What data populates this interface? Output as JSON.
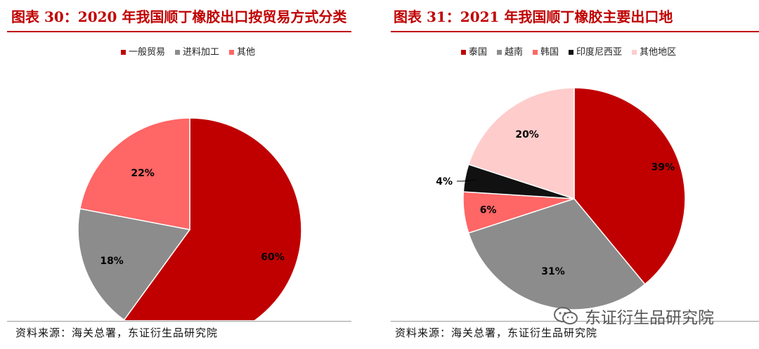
{
  "chart_data": [
    {
      "type": "pie",
      "title": "图表 30：2020 年我国顺丁橡胶出口按贸易方式分类",
      "categories": [
        "一般贸易",
        "进料加工",
        "其他"
      ],
      "values": [
        60,
        18,
        22
      ],
      "value_labels": [
        "60%",
        "18%",
        "22%"
      ],
      "colors": [
        "#c00000",
        "#8c8c8c",
        "#ff6666"
      ],
      "legend_position": "top",
      "source": "资料来源：海关总署，东证衍生品研究院"
    },
    {
      "type": "pie",
      "title": "图表 31：2021 年我国顺丁橡胶主要出口地",
      "categories": [
        "泰国",
        "越南",
        "韩国",
        "印度尼西亚",
        "其他地区"
      ],
      "values": [
        39,
        31,
        6,
        4,
        20
      ],
      "value_labels": [
        "39%",
        "31%",
        "6%",
        "4%",
        "20%"
      ],
      "colors": [
        "#c00000",
        "#8c8c8c",
        "#ff6666",
        "#111111",
        "#ffcccc"
      ],
      "legend_position": "top",
      "source": "资料来源：海关总署，东证衍生品研究院"
    }
  ],
  "watermark": {
    "text": "东证衍生品研究院",
    "icon": "wechat-icon"
  }
}
